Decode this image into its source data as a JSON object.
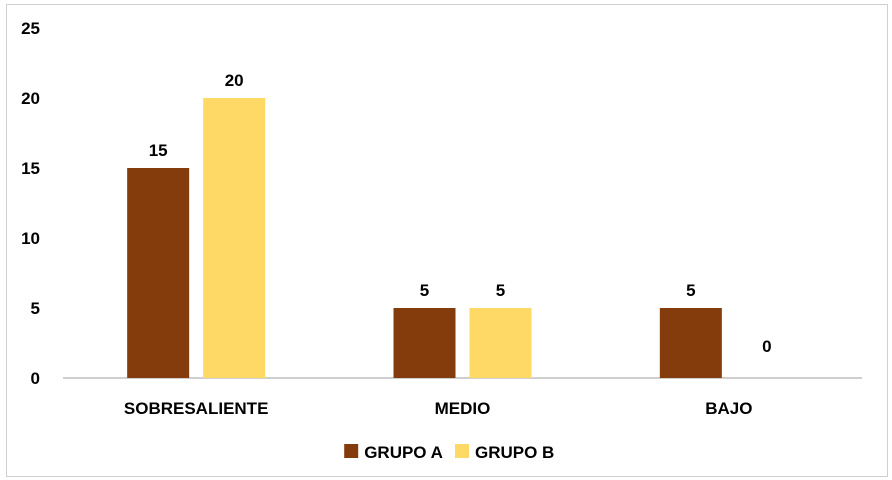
{
  "chart_data": {
    "type": "bar",
    "categories": [
      "SOBRESALIENTE",
      "MEDIO",
      "BAJO"
    ],
    "series": [
      {
        "name": "GRUPO A",
        "values": [
          15,
          5,
          5
        ],
        "color": "#843C0C"
      },
      {
        "name": "GRUPO B",
        "values": [
          20,
          5,
          0
        ],
        "color": "#FFD966"
      }
    ],
    "ylim": [
      0,
      25
    ],
    "yticks": [
      0,
      5,
      10,
      15,
      20,
      25
    ],
    "grid": false,
    "legend_position": "bottom",
    "axis_color": "#bfbfbf"
  }
}
